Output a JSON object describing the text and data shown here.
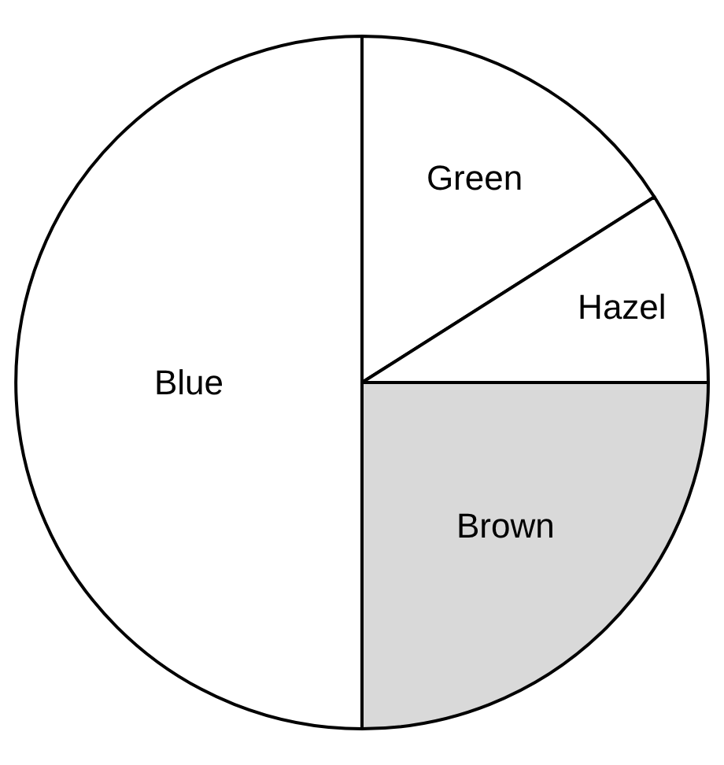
{
  "chart_data": {
    "type": "pie",
    "categories": [
      "Green",
      "Hazel",
      "Brown",
      "Blue"
    ],
    "values": [
      16,
      9,
      25,
      50
    ],
    "colors": [
      "#ffffff",
      "#ffffff",
      "#d9d9d9",
      "#ffffff"
    ],
    "legend": false
  }
}
